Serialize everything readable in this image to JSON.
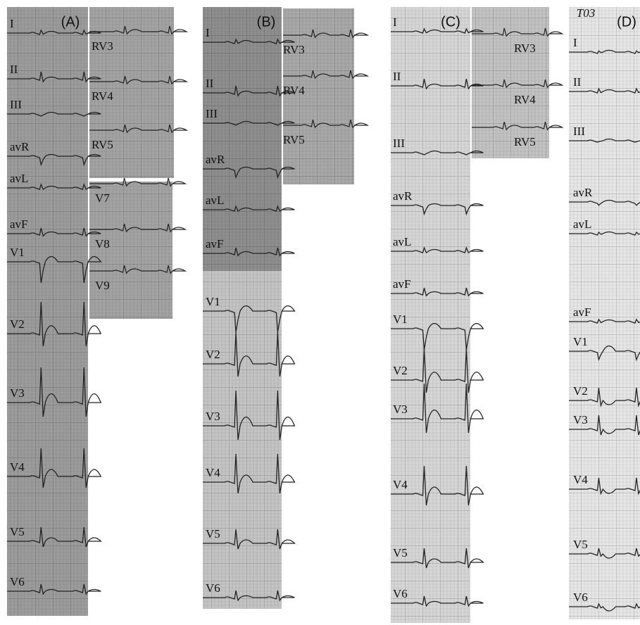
{
  "panels": [
    {
      "label": "(A)",
      "main_leads": [
        "I",
        "II",
        "III",
        "avR",
        "avL",
        "avF",
        "V1",
        "V2",
        "V3",
        "V4",
        "V5",
        "V6"
      ],
      "side_strips": [
        [
          "RV3",
          "RV4",
          "RV5"
        ],
        [
          "V7",
          "V8",
          "V9"
        ]
      ]
    },
    {
      "label": "(B)",
      "main_leads": [
        "I",
        "II",
        "III",
        "avR",
        "avL",
        "avF",
        "V1",
        "V2",
        "V3",
        "V4",
        "V5",
        "V6"
      ],
      "side_strips": [
        [
          "RV3",
          "RV4",
          "RV5"
        ]
      ]
    },
    {
      "label": "(C)",
      "main_leads": [
        "I",
        "II",
        "III",
        "avR",
        "avL",
        "avF",
        "V1",
        "V2",
        "V3",
        "V4",
        "V5",
        "V6"
      ],
      "side_strips": [
        [
          "RV3",
          "RV4",
          "RV5"
        ]
      ]
    },
    {
      "label": "(D)",
      "note": "T03",
      "main_leads": [
        "I",
        "II",
        "III",
        "avR",
        "avL",
        "avF",
        "V1",
        "V2",
        "V3",
        "V4",
        "V5",
        "V6"
      ],
      "side_strips": []
    }
  ]
}
